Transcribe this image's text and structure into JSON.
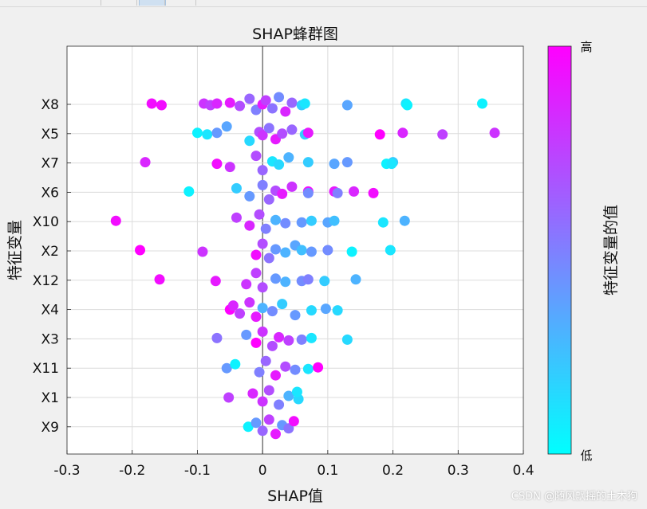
{
  "chart_data": {
    "type": "scatter",
    "title": "SHAP蜂群图",
    "xlabel": "SHAP值",
    "ylabel": "特征变量",
    "xlim": [
      -0.3,
      0.4
    ],
    "xticks": [
      -0.3,
      -0.2,
      -0.1,
      0,
      0.1,
      0.2,
      0.3,
      0.4
    ],
    "xtick_labels": [
      "-0.3",
      "-0.2",
      "-0.1",
      "0",
      "0.1",
      "0.2",
      "0.3",
      "0.4"
    ],
    "features": [
      "X8",
      "X5",
      "X7",
      "X6",
      "X10",
      "X2",
      "X12",
      "X4",
      "X3",
      "X11",
      "X1",
      "X9"
    ],
    "grid": true,
    "colormap": [
      "#00ffff",
      "#ff00ff"
    ],
    "colorbar": {
      "label": "特征变量的值",
      "high_label": "高",
      "low_label": "低"
    },
    "series": [
      {
        "feature": "X8",
        "points": [
          {
            "x": -0.17,
            "v": 0.95
          },
          {
            "x": -0.155,
            "v": 0.95
          },
          {
            "x": -0.09,
            "v": 0.8
          },
          {
            "x": -0.08,
            "v": 0.75
          },
          {
            "x": -0.07,
            "v": 0.85
          },
          {
            "x": -0.05,
            "v": 0.9
          },
          {
            "x": -0.035,
            "v": 0.7
          },
          {
            "x": -0.02,
            "v": 0.6
          },
          {
            "x": -0.01,
            "v": 0.5
          },
          {
            "x": 0.0,
            "v": 0.9
          },
          {
            "x": 0.005,
            "v": 0.75
          },
          {
            "x": 0.015,
            "v": 0.55
          },
          {
            "x": 0.025,
            "v": 0.45
          },
          {
            "x": 0.035,
            "v": 0.85
          },
          {
            "x": 0.045,
            "v": 0.6
          },
          {
            "x": 0.06,
            "v": 0.2
          },
          {
            "x": 0.065,
            "v": 0.1
          },
          {
            "x": 0.13,
            "v": 0.35
          },
          {
            "x": 0.22,
            "v": 0.1
          },
          {
            "x": 0.222,
            "v": 0.05
          },
          {
            "x": 0.337,
            "v": 0.05
          }
        ]
      },
      {
        "feature": "X5",
        "points": [
          {
            "x": -0.1,
            "v": 0.05
          },
          {
            "x": -0.085,
            "v": 0.1
          },
          {
            "x": -0.07,
            "v": 0.4
          },
          {
            "x": -0.055,
            "v": 0.35
          },
          {
            "x": -0.02,
            "v": 0.15
          },
          {
            "x": -0.005,
            "v": 0.7
          },
          {
            "x": 0.0,
            "v": 0.8
          },
          {
            "x": 0.01,
            "v": 0.55
          },
          {
            "x": 0.02,
            "v": 0.9
          },
          {
            "x": 0.03,
            "v": 0.7
          },
          {
            "x": 0.045,
            "v": 0.6
          },
          {
            "x": 0.065,
            "v": 0.2
          },
          {
            "x": 0.07,
            "v": 0.9
          },
          {
            "x": 0.18,
            "v": 1.0
          },
          {
            "x": 0.215,
            "v": 0.85
          },
          {
            "x": 0.276,
            "v": 0.75
          },
          {
            "x": 0.356,
            "v": 0.8
          }
        ]
      },
      {
        "feature": "X7",
        "points": [
          {
            "x": -0.18,
            "v": 0.85
          },
          {
            "x": -0.07,
            "v": 0.95
          },
          {
            "x": -0.05,
            "v": 0.8
          },
          {
            "x": -0.01,
            "v": 0.7
          },
          {
            "x": 0.0,
            "v": 0.6
          },
          {
            "x": 0.015,
            "v": 0.1
          },
          {
            "x": 0.025,
            "v": 0.15
          },
          {
            "x": 0.04,
            "v": 0.3
          },
          {
            "x": 0.07,
            "v": 0.2
          },
          {
            "x": 0.11,
            "v": 0.35
          },
          {
            "x": 0.13,
            "v": 0.4
          },
          {
            "x": 0.19,
            "v": 0.05
          },
          {
            "x": 0.2,
            "v": 0.2
          },
          {
            "x": 0.198,
            "v": 0.1
          }
        ]
      },
      {
        "feature": "X6",
        "points": [
          {
            "x": -0.113,
            "v": 0.05
          },
          {
            "x": -0.04,
            "v": 0.2
          },
          {
            "x": -0.02,
            "v": 0.4
          },
          {
            "x": 0.0,
            "v": 0.5
          },
          {
            "x": 0.01,
            "v": 0.6
          },
          {
            "x": 0.02,
            "v": 0.7
          },
          {
            "x": 0.03,
            "v": 0.9
          },
          {
            "x": 0.045,
            "v": 0.8
          },
          {
            "x": 0.07,
            "v": 0.95
          },
          {
            "x": 0.07,
            "v": 0.45
          },
          {
            "x": 0.11,
            "v": 0.9
          },
          {
            "x": 0.115,
            "v": 0.5
          },
          {
            "x": 0.14,
            "v": 0.85
          },
          {
            "x": 0.17,
            "v": 0.95
          }
        ]
      },
      {
        "feature": "X10",
        "points": [
          {
            "x": -0.225,
            "v": 0.95
          },
          {
            "x": -0.04,
            "v": 0.75
          },
          {
            "x": -0.02,
            "v": 0.85
          },
          {
            "x": -0.005,
            "v": 0.7
          },
          {
            "x": 0.005,
            "v": 0.5
          },
          {
            "x": 0.02,
            "v": 0.3
          },
          {
            "x": 0.035,
            "v": 0.45
          },
          {
            "x": 0.06,
            "v": 0.4
          },
          {
            "x": 0.075,
            "v": 0.2
          },
          {
            "x": 0.1,
            "v": 0.35
          },
          {
            "x": 0.11,
            "v": 0.25
          },
          {
            "x": 0.185,
            "v": 0.1
          },
          {
            "x": 0.218,
            "v": 0.3
          }
        ]
      },
      {
        "feature": "X2",
        "points": [
          {
            "x": -0.188,
            "v": 1.0
          },
          {
            "x": -0.092,
            "v": 0.8
          },
          {
            "x": -0.01,
            "v": 0.95
          },
          {
            "x": 0.0,
            "v": 0.7
          },
          {
            "x": 0.01,
            "v": 0.55
          },
          {
            "x": 0.02,
            "v": 0.4
          },
          {
            "x": 0.035,
            "v": 0.3
          },
          {
            "x": 0.05,
            "v": 0.35
          },
          {
            "x": 0.06,
            "v": 0.25
          },
          {
            "x": 0.075,
            "v": 0.4
          },
          {
            "x": 0.1,
            "v": 0.45
          },
          {
            "x": 0.137,
            "v": 0.05
          },
          {
            "x": 0.196,
            "v": 0.1
          }
        ]
      },
      {
        "feature": "X12",
        "points": [
          {
            "x": -0.158,
            "v": 0.95
          },
          {
            "x": -0.072,
            "v": 0.9
          },
          {
            "x": -0.025,
            "v": 0.8
          },
          {
            "x": -0.01,
            "v": 0.75
          },
          {
            "x": 0.0,
            "v": 0.7
          },
          {
            "x": 0.02,
            "v": 0.4
          },
          {
            "x": 0.035,
            "v": 0.3
          },
          {
            "x": 0.06,
            "v": 0.45
          },
          {
            "x": 0.07,
            "v": 0.5
          },
          {
            "x": 0.095,
            "v": 0.2
          },
          {
            "x": 0.143,
            "v": 0.3
          }
        ]
      },
      {
        "feature": "X4",
        "points": [
          {
            "x": -0.05,
            "v": 1.0
          },
          {
            "x": -0.045,
            "v": 0.85
          },
          {
            "x": -0.035,
            "v": 0.75
          },
          {
            "x": -0.02,
            "v": 0.8
          },
          {
            "x": -0.01,
            "v": 0.9
          },
          {
            "x": 0.0,
            "v": 0.3
          },
          {
            "x": 0.015,
            "v": 0.45
          },
          {
            "x": 0.03,
            "v": 0.2
          },
          {
            "x": 0.05,
            "v": 0.4
          },
          {
            "x": 0.075,
            "v": 0.15
          },
          {
            "x": 0.097,
            "v": 0.35
          },
          {
            "x": 0.115,
            "v": 0.15
          }
        ]
      },
      {
        "feature": "X3",
        "points": [
          {
            "x": -0.07,
            "v": 0.55
          },
          {
            "x": -0.025,
            "v": 0.4
          },
          {
            "x": -0.01,
            "v": 1.0
          },
          {
            "x": 0.0,
            "v": 0.8
          },
          {
            "x": 0.015,
            "v": 0.7
          },
          {
            "x": 0.025,
            "v": 0.85
          },
          {
            "x": 0.04,
            "v": 0.75
          },
          {
            "x": 0.06,
            "v": 0.5
          },
          {
            "x": 0.075,
            "v": 0.1
          },
          {
            "x": 0.13,
            "v": 0.15
          }
        ]
      },
      {
        "feature": "X11",
        "points": [
          {
            "x": -0.055,
            "v": 0.4
          },
          {
            "x": -0.042,
            "v": 0.05
          },
          {
            "x": -0.005,
            "v": 0.5
          },
          {
            "x": 0.005,
            "v": 0.6
          },
          {
            "x": 0.02,
            "v": 0.9
          },
          {
            "x": 0.035,
            "v": 0.7
          },
          {
            "x": 0.05,
            "v": 0.45
          },
          {
            "x": 0.07,
            "v": 0.1
          },
          {
            "x": 0.085,
            "v": 1.0
          }
        ]
      },
      {
        "feature": "X1",
        "points": [
          {
            "x": -0.052,
            "v": 0.75
          },
          {
            "x": -0.015,
            "v": 0.85
          },
          {
            "x": 0.0,
            "v": 0.8
          },
          {
            "x": 0.01,
            "v": 0.7
          },
          {
            "x": 0.025,
            "v": 0.5
          },
          {
            "x": 0.04,
            "v": 0.3
          },
          {
            "x": 0.055,
            "v": 0.15
          },
          {
            "x": 0.053,
            "v": 0.1
          }
        ]
      },
      {
        "feature": "X9",
        "points": [
          {
            "x": -0.022,
            "v": 0.05
          },
          {
            "x": -0.01,
            "v": 0.4
          },
          {
            "x": 0.0,
            "v": 0.6
          },
          {
            "x": 0.01,
            "v": 0.75
          },
          {
            "x": 0.02,
            "v": 0.9
          },
          {
            "x": 0.03,
            "v": 0.4
          },
          {
            "x": 0.04,
            "v": 0.55
          },
          {
            "x": 0.048,
            "v": 0.95
          }
        ]
      }
    ]
  },
  "watermark": "CSDN @随风飘摇的土木狗"
}
